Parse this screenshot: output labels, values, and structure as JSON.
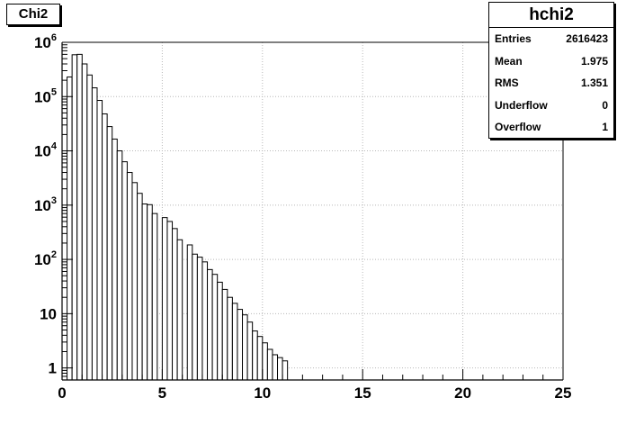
{
  "pad_title": "Chi2",
  "stats": {
    "name": "hchi2",
    "rows": [
      {
        "label": "Entries",
        "value": "2616423"
      },
      {
        "label": "Mean",
        "value": "1.975"
      },
      {
        "label": "RMS",
        "value": "1.351"
      },
      {
        "label": "Underflow",
        "value": "0"
      },
      {
        "label": "Overflow",
        "value": "1"
      }
    ]
  },
  "chart_data": {
    "type": "bar",
    "title": "Chi2",
    "histogram_name": "hchi2",
    "x_axis": {
      "range": [
        0,
        25
      ],
      "ticks": [
        0,
        5,
        10,
        15,
        20,
        25
      ],
      "tick_labels": [
        "0",
        "5",
        "10",
        "15",
        "20",
        "25"
      ]
    },
    "y_axis": {
      "scale": "log",
      "range": [
        0.6,
        1000000
      ],
      "ticks": [
        1,
        10,
        100,
        1000,
        10000,
        100000,
        1000000
      ],
      "tick_labels": [
        {
          "base": "1",
          "exp": ""
        },
        {
          "base": "10",
          "exp": ""
        },
        {
          "base": "10",
          "exp": "2"
        },
        {
          "base": "10",
          "exp": "3"
        },
        {
          "base": "10",
          "exp": "4"
        },
        {
          "base": "10",
          "exp": "5"
        },
        {
          "base": "10",
          "exp": "6"
        }
      ]
    },
    "grid": true,
    "bin_width": 0.25,
    "values": [
      0,
      230000,
      590000,
      600000,
      400000,
      250000,
      145000,
      85000,
      48000,
      28000,
      16500,
      10000,
      6300,
      4000,
      2600,
      1650,
      1050,
      1020,
      700,
      0,
      590,
      500,
      370,
      230,
      0,
      185,
      125,
      110,
      90,
      65,
      53,
      38,
      28,
      20,
      15.5,
      12,
      9.5,
      7,
      4.8,
      3.8,
      2.9,
      2.2,
      1.75,
      1.55,
      1.35,
      0,
      0.6,
      0.6,
      0.6,
      0.6,
      0.6,
      0,
      0.6,
      0.6,
      0.6,
      0.6,
      0.6,
      0.6,
      0.6,
      0.6,
      0.6,
      0.6,
      0.6,
      0.6,
      0.6,
      0.6,
      0.6,
      0.6,
      0.6,
      0.6,
      0.6,
      0.6,
      0.6,
      0,
      0.6,
      0.6,
      0.6,
      0.6,
      0.6,
      0.6,
      0.6,
      0.6,
      0.6,
      0.6,
      0.6,
      0.6,
      0.6,
      0.6,
      0.6,
      0.6,
      0,
      0.6,
      0.6,
      0.6,
      0.6,
      0.6,
      0.6,
      0.6,
      0.6,
      0.6
    ]
  }
}
